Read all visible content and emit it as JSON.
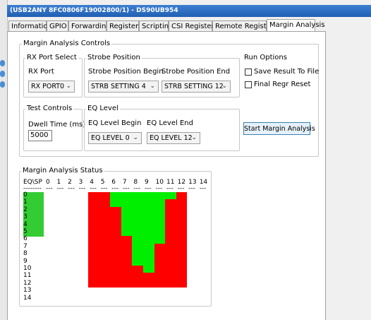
{
  "window": {
    "title": "(USB2ANY 8FC0806F19002800/1) - DS90UB954"
  },
  "tabs": {
    "items": [
      "Information",
      "GPIO",
      "Forwarding",
      "Registers",
      "Scripting",
      "CSI Registers",
      "Remote Registers",
      "Margin Analysis"
    ],
    "active": 7
  },
  "controls": {
    "title": "Margin Analysis Controls",
    "rx_port": {
      "title": "RX Port Select",
      "label": "RX Port",
      "value": "RX PORT0"
    },
    "strobe": {
      "title": "Strobe Position",
      "begin_label": "Strobe Position Begin",
      "begin_value": "STRB SETTING 4",
      "end_label": "Strobe Position End",
      "end_value": "STRB SETTING 12"
    },
    "run_options": {
      "title": "Run Options",
      "options": [
        "Save Result To File",
        "Final Regr Reset"
      ]
    },
    "test": {
      "title": "Test Controls",
      "label": "Dwell Time (ms)",
      "value": "5000"
    },
    "eq": {
      "title": "EQ Level",
      "begin_label": "EQ Level Begin",
      "begin_value": "EQ LEVEL 0",
      "end_label": "EQ Level End",
      "end_value": "EQ LEVEL 12"
    },
    "start_button": "Start Margin Analysis"
  },
  "status": {
    "title": "Margin Analysis Status",
    "corner": "EQ\\SP",
    "corner_rule": "--------",
    "column_rule": "---",
    "columns": [
      "0",
      "1",
      "2",
      "3",
      "4",
      "5",
      "6",
      "7",
      "8",
      "9",
      "10",
      "11",
      "12",
      "13",
      "14"
    ],
    "rows": [
      "0",
      "1",
      "2",
      "3",
      "4",
      "5",
      "6",
      "7",
      "8",
      "9",
      "10",
      "11",
      "12",
      "13",
      "14"
    ],
    "row_highlight": [
      true,
      true,
      true,
      true,
      true,
      true,
      false,
      false,
      false,
      false,
      false,
      false,
      false,
      false,
      false
    ],
    "highlight_color": "#33cc33",
    "pass_color": "#00ee00",
    "fail_color": "#ff0000",
    "cells": [
      [
        null,
        null,
        null,
        null,
        false,
        false,
        true,
        true,
        true,
        true,
        true,
        true,
        false,
        null,
        null
      ],
      [
        null,
        null,
        null,
        null,
        false,
        false,
        true,
        true,
        true,
        true,
        true,
        false,
        false,
        null,
        null
      ],
      [
        null,
        null,
        null,
        null,
        false,
        false,
        false,
        true,
        true,
        true,
        true,
        false,
        false,
        null,
        null
      ],
      [
        null,
        null,
        null,
        null,
        false,
        false,
        false,
        true,
        true,
        true,
        true,
        false,
        false,
        null,
        null
      ],
      [
        null,
        null,
        null,
        null,
        false,
        false,
        false,
        true,
        true,
        true,
        true,
        false,
        false,
        null,
        null
      ],
      [
        null,
        null,
        null,
        null,
        false,
        false,
        false,
        true,
        true,
        true,
        true,
        false,
        false,
        null,
        null
      ],
      [
        null,
        null,
        null,
        null,
        false,
        false,
        false,
        false,
        true,
        true,
        true,
        false,
        false,
        null,
        null
      ],
      [
        null,
        null,
        null,
        null,
        false,
        false,
        false,
        false,
        true,
        true,
        false,
        false,
        false,
        null,
        null
      ],
      [
        null,
        null,
        null,
        null,
        false,
        false,
        false,
        false,
        true,
        true,
        false,
        false,
        false,
        null,
        null
      ],
      [
        null,
        null,
        null,
        null,
        false,
        false,
        false,
        false,
        true,
        true,
        false,
        false,
        false,
        null,
        null
      ],
      [
        null,
        null,
        null,
        null,
        false,
        false,
        false,
        false,
        false,
        true,
        false,
        false,
        false,
        null,
        null
      ],
      [
        null,
        null,
        null,
        null,
        false,
        false,
        false,
        false,
        false,
        false,
        false,
        false,
        false,
        null,
        null
      ],
      [
        null,
        null,
        null,
        null,
        false,
        false,
        false,
        false,
        false,
        false,
        false,
        false,
        false,
        null,
        null
      ],
      [
        null,
        null,
        null,
        null,
        null,
        null,
        null,
        null,
        null,
        null,
        null,
        null,
        null,
        null,
        null
      ],
      [
        null,
        null,
        null,
        null,
        null,
        null,
        null,
        null,
        null,
        null,
        null,
        null,
        null,
        null,
        null
      ]
    ]
  }
}
